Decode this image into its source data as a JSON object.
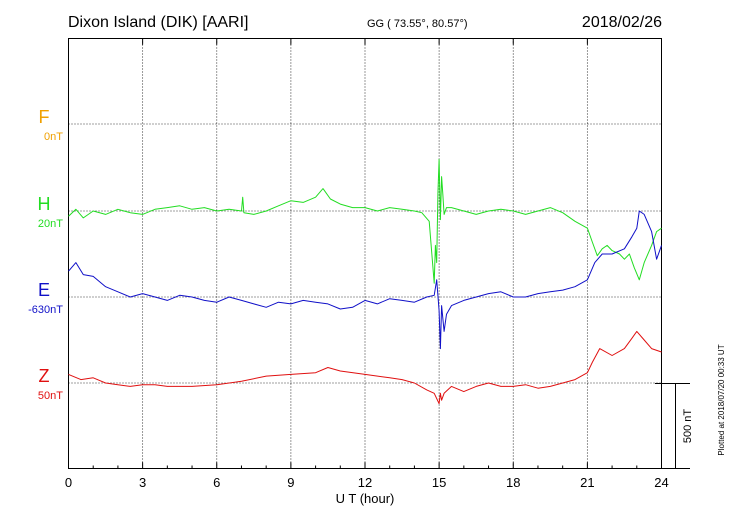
{
  "header": {
    "station": "Dixon Island (DIK)  [AARI]",
    "coords": "GG ( 73.55°,  80.57°)",
    "date": "2018/02/26"
  },
  "side_note": "Plotted at 2018/07/20 00:33 UT",
  "scale_label": "500 nT",
  "channels": [
    {
      "key": "F",
      "name": "F",
      "baseline": "0nT",
      "color": "#f0a000"
    },
    {
      "key": "H",
      "name": "H",
      "baseline": "20nT",
      "color": "#22dd22"
    },
    {
      "key": "E",
      "name": "E",
      "baseline": "-630nT",
      "color": "#1010c8"
    },
    {
      "key": "Z",
      "name": "Z",
      "baseline": "50nT",
      "color": "#e01010"
    }
  ],
  "chart_data": {
    "type": "line",
    "xlabel": "U T (hour)",
    "xlim": [
      0,
      24
    ],
    "xticks": [
      0,
      3,
      6,
      9,
      12,
      15,
      18,
      21,
      24
    ],
    "nT_per_channel_spacing": 500,
    "grid": true,
    "series": [
      {
        "name": "H",
        "x": [
          0,
          0.3,
          0.6,
          1,
          1.5,
          2,
          2.5,
          3,
          3.5,
          4,
          4.5,
          5,
          5.5,
          6,
          6.5,
          7,
          7.05,
          7.1,
          7.5,
          8,
          8.5,
          9,
          9.5,
          10,
          10.3,
          10.6,
          11,
          11.5,
          12,
          12.5,
          13,
          13.5,
          14,
          14.3,
          14.6,
          14.8,
          14.85,
          14.9,
          14.95,
          15,
          15.05,
          15.1,
          15.15,
          15.2,
          15.3,
          15.5,
          16,
          16.5,
          17,
          17.5,
          18,
          18.5,
          19,
          19.5,
          20,
          20.5,
          21,
          21.2,
          21.4,
          21.6,
          21.8,
          22,
          22.3,
          22.5,
          22.7,
          22.9,
          23.1,
          23.3,
          23.6,
          23.8,
          24
        ],
        "y": [
          -30,
          10,
          -40,
          0,
          -20,
          10,
          -10,
          -20,
          10,
          20,
          30,
          10,
          20,
          0,
          10,
          0,
          80,
          -10,
          -20,
          0,
          30,
          60,
          50,
          80,
          130,
          70,
          40,
          20,
          20,
          0,
          20,
          10,
          0,
          -10,
          -60,
          -420,
          -200,
          -300,
          100,
          300,
          -50,
          200,
          100,
          -20,
          20,
          20,
          0,
          -20,
          0,
          10,
          0,
          -20,
          0,
          20,
          -10,
          -60,
          -100,
          -180,
          -260,
          -220,
          -200,
          -230,
          -250,
          -280,
          -250,
          -330,
          -400,
          -300,
          -200,
          -120,
          -100
        ]
      },
      {
        "name": "E",
        "x": [
          0,
          0.3,
          0.6,
          1,
          1.5,
          2,
          2.5,
          3,
          3.5,
          4,
          4.5,
          5,
          5.5,
          6,
          6.5,
          7,
          7.5,
          8,
          8.5,
          9,
          9.5,
          10,
          10.5,
          11,
          11.5,
          12,
          12.5,
          13,
          13.5,
          14,
          14.5,
          14.8,
          14.9,
          15,
          15.05,
          15.1,
          15.2,
          15.3,
          15.5,
          16,
          16.5,
          17,
          17.5,
          18,
          18.5,
          19,
          19.5,
          20,
          20.5,
          21,
          21.3,
          21.6,
          22,
          22.5,
          22.8,
          23,
          23.1,
          23.3,
          23.6,
          23.8,
          24
        ],
        "y": [
          150,
          200,
          130,
          120,
          60,
          30,
          0,
          20,
          0,
          -20,
          10,
          0,
          -20,
          -30,
          0,
          -20,
          -40,
          -60,
          -30,
          -40,
          -20,
          -30,
          -40,
          -70,
          -60,
          -20,
          -40,
          -10,
          -20,
          -30,
          0,
          10,
          100,
          -80,
          -300,
          -50,
          -200,
          -100,
          -50,
          -20,
          0,
          20,
          30,
          0,
          0,
          20,
          30,
          40,
          60,
          100,
          200,
          250,
          250,
          280,
          350,
          400,
          500,
          480,
          380,
          220,
          300
        ]
      },
      {
        "name": "Z",
        "x": [
          0,
          0.5,
          1,
          1.5,
          2,
          2.5,
          3,
          3.5,
          4,
          5,
          6,
          7,
          8,
          9,
          10,
          10.5,
          11,
          12,
          13,
          13.5,
          14,
          14.5,
          14.8,
          15,
          15.05,
          15.1,
          15.2,
          15.5,
          16,
          16.5,
          17,
          17.5,
          18,
          18.5,
          19,
          19.5,
          20,
          20.5,
          21,
          21.2,
          21.5,
          22,
          22.5,
          22.8,
          23,
          23.3,
          23.6,
          24
        ],
        "y": [
          50,
          20,
          30,
          0,
          -10,
          -20,
          -10,
          -10,
          -20,
          -20,
          -10,
          10,
          40,
          50,
          60,
          90,
          70,
          50,
          30,
          20,
          0,
          -40,
          -60,
          -120,
          -60,
          -100,
          -60,
          -20,
          -50,
          -20,
          0,
          -20,
          -20,
          -10,
          -30,
          -20,
          0,
          20,
          60,
          120,
          200,
          160,
          200,
          260,
          300,
          250,
          200,
          180
        ]
      }
    ]
  }
}
